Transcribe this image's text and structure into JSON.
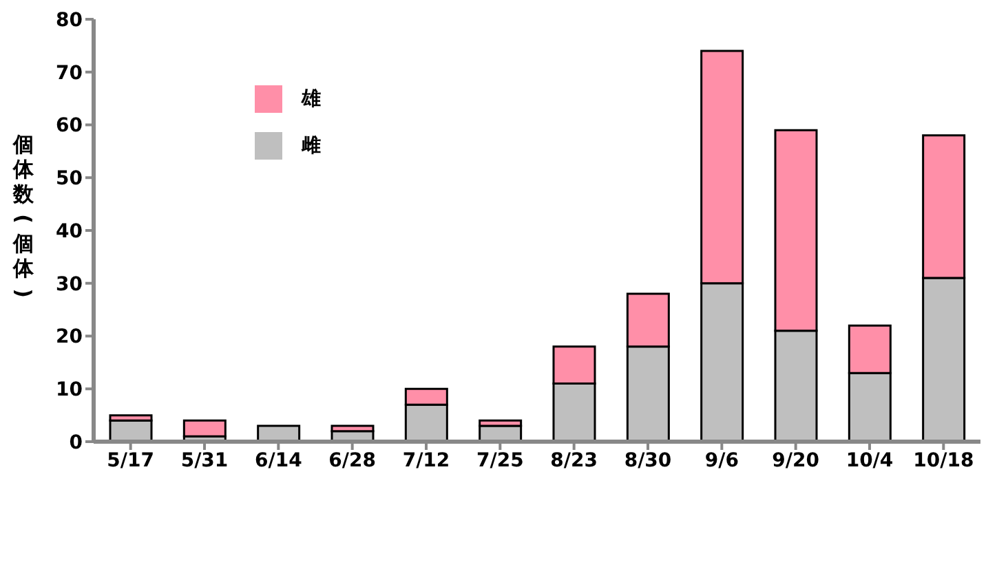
{
  "chart_data": {
    "type": "bar",
    "stacked": true,
    "ylabel": "個体数(個体)",
    "categories": [
      "5/17",
      "5/31",
      "6/14",
      "6/28",
      "7/12",
      "7/25",
      "8/23",
      "8/30",
      "9/6",
      "9/20",
      "10/4",
      "10/18"
    ],
    "series": [
      {
        "name": "雌",
        "color": "#bfbfbf",
        "values": [
          4,
          1,
          3,
          2,
          7,
          3,
          11,
          18,
          30,
          21,
          13,
          31
        ]
      },
      {
        "name": "雄",
        "color": "#ff8fa8",
        "values": [
          1,
          3,
          0,
          1,
          3,
          1,
          7,
          10,
          44,
          38,
          9,
          27
        ]
      }
    ],
    "ylim": [
      0,
      80
    ],
    "yticks": [
      0,
      10,
      20,
      30,
      40,
      50,
      60,
      70,
      80
    ],
    "grid": false,
    "legend": "top left"
  }
}
